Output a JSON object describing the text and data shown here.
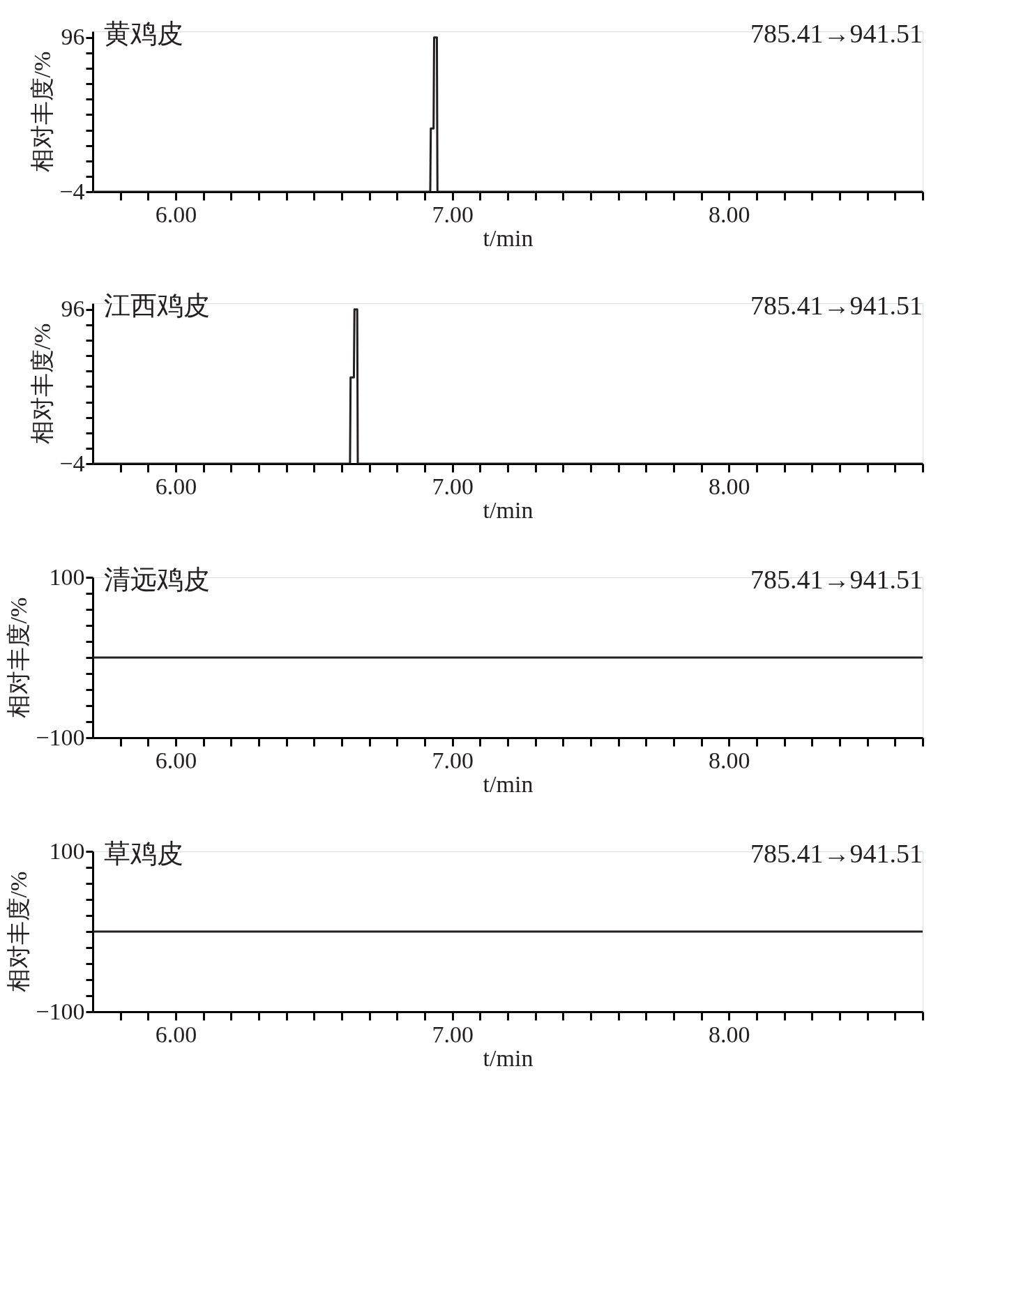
{
  "chart_data": [
    {
      "type": "line",
      "title": "黄鸡皮",
      "annotations": [
        "785.41→941.51"
      ],
      "xlabel": "t/min",
      "ylabel": "相对丰度/%",
      "xlim": [
        5.7,
        8.7
      ],
      "ylim": [
        -4,
        100
      ],
      "grid": false,
      "marker": "none",
      "line_style": "solid",
      "xticks": [
        {
          "value": 5.8,
          "label": null
        },
        {
          "value": 5.9,
          "label": null
        },
        {
          "value": 6.0,
          "label": "6.00"
        },
        {
          "value": 6.1,
          "label": null
        },
        {
          "value": 6.2,
          "label": null
        },
        {
          "value": 6.3,
          "label": null
        },
        {
          "value": 6.4,
          "label": null
        },
        {
          "value": 6.5,
          "label": null
        },
        {
          "value": 6.6,
          "label": null
        },
        {
          "value": 6.7,
          "label": null
        },
        {
          "value": 6.8,
          "label": null
        },
        {
          "value": 6.9,
          "label": null
        },
        {
          "value": 7.0,
          "label": "7.00"
        },
        {
          "value": 7.1,
          "label": null
        },
        {
          "value": 7.2,
          "label": null
        },
        {
          "value": 7.3,
          "label": null
        },
        {
          "value": 7.4,
          "label": null
        },
        {
          "value": 7.5,
          "label": null
        },
        {
          "value": 7.6,
          "label": null
        },
        {
          "value": 7.7,
          "label": null
        },
        {
          "value": 7.8,
          "label": null
        },
        {
          "value": 7.9,
          "label": null
        },
        {
          "value": 8.0,
          "label": "8.00"
        },
        {
          "value": 8.1,
          "label": null
        },
        {
          "value": 8.2,
          "label": null
        },
        {
          "value": 8.3,
          "label": null
        },
        {
          "value": 8.4,
          "label": null
        },
        {
          "value": 8.5,
          "label": null
        },
        {
          "value": 8.6,
          "label": null
        },
        {
          "value": 8.7,
          "label": null
        }
      ],
      "yticks": [
        {
          "value": -4,
          "label": "−4"
        },
        {
          "value": 6,
          "label": null
        },
        {
          "value": 16,
          "label": null
        },
        {
          "value": 26,
          "label": null
        },
        {
          "value": 36,
          "label": null
        },
        {
          "value": 46,
          "label": null
        },
        {
          "value": 56,
          "label": null
        },
        {
          "value": 66,
          "label": null
        },
        {
          "value": 76,
          "label": null
        },
        {
          "value": 86,
          "label": null
        },
        {
          "value": 96,
          "label": "96"
        }
      ],
      "series": [
        {
          "color": "#231f20",
          "x": [
            5.7,
            6.92,
            6.922,
            6.932,
            6.934,
            6.944,
            6.946,
            8.7
          ],
          "values": [
            -4,
            -4,
            37,
            37,
            96,
            96,
            -4,
            -4
          ]
        }
      ]
    },
    {
      "type": "line",
      "title": "江西鸡皮",
      "annotations": [
        "785.41→941.51"
      ],
      "xlabel": "t/min",
      "ylabel": "相对丰度/%",
      "xlim": [
        5.7,
        8.7
      ],
      "ylim": [
        -4,
        100
      ],
      "grid": false,
      "marker": "none",
      "line_style": "solid",
      "xticks": [
        {
          "value": 5.8,
          "label": null
        },
        {
          "value": 5.9,
          "label": null
        },
        {
          "value": 6.0,
          "label": "6.00"
        },
        {
          "value": 6.1,
          "label": null
        },
        {
          "value": 6.2,
          "label": null
        },
        {
          "value": 6.3,
          "label": null
        },
        {
          "value": 6.4,
          "label": null
        },
        {
          "value": 6.5,
          "label": null
        },
        {
          "value": 6.6,
          "label": null
        },
        {
          "value": 6.7,
          "label": null
        },
        {
          "value": 6.8,
          "label": null
        },
        {
          "value": 6.9,
          "label": null
        },
        {
          "value": 7.0,
          "label": "7.00"
        },
        {
          "value": 7.1,
          "label": null
        },
        {
          "value": 7.2,
          "label": null
        },
        {
          "value": 7.3,
          "label": null
        },
        {
          "value": 7.4,
          "label": null
        },
        {
          "value": 7.5,
          "label": null
        },
        {
          "value": 7.6,
          "label": null
        },
        {
          "value": 7.7,
          "label": null
        },
        {
          "value": 7.8,
          "label": null
        },
        {
          "value": 7.9,
          "label": null
        },
        {
          "value": 8.0,
          "label": "8.00"
        },
        {
          "value": 8.1,
          "label": null
        },
        {
          "value": 8.2,
          "label": null
        },
        {
          "value": 8.3,
          "label": null
        },
        {
          "value": 8.4,
          "label": null
        },
        {
          "value": 8.5,
          "label": null
        },
        {
          "value": 8.6,
          "label": null
        },
        {
          "value": 8.7,
          "label": null
        }
      ],
      "yticks": [
        {
          "value": -4,
          "label": "−4"
        },
        {
          "value": 6,
          "label": null
        },
        {
          "value": 16,
          "label": null
        },
        {
          "value": 26,
          "label": null
        },
        {
          "value": 36,
          "label": null
        },
        {
          "value": 46,
          "label": null
        },
        {
          "value": 56,
          "label": null
        },
        {
          "value": 66,
          "label": null
        },
        {
          "value": 76,
          "label": null
        },
        {
          "value": 86,
          "label": null
        },
        {
          "value": 96,
          "label": "96"
        }
      ],
      "series": [
        {
          "color": "#231f20",
          "x": [
            5.7,
            6.63,
            6.632,
            6.644,
            6.646,
            6.656,
            6.658,
            8.7
          ],
          "values": [
            -4,
            -4,
            52,
            52,
            96,
            96,
            -4,
            -4
          ]
        }
      ]
    },
    {
      "type": "line",
      "title": "清远鸡皮",
      "annotations": [
        "785.41→941.51"
      ],
      "xlabel": "t/min",
      "ylabel": "相对丰度/%",
      "xlim": [
        5.7,
        8.7
      ],
      "ylim": [
        -100,
        100
      ],
      "grid": false,
      "marker": "none",
      "line_style": "solid",
      "xticks": [
        {
          "value": 5.8,
          "label": null
        },
        {
          "value": 5.9,
          "label": null
        },
        {
          "value": 6.0,
          "label": "6.00"
        },
        {
          "value": 6.1,
          "label": null
        },
        {
          "value": 6.2,
          "label": null
        },
        {
          "value": 6.3,
          "label": null
        },
        {
          "value": 6.4,
          "label": null
        },
        {
          "value": 6.5,
          "label": null
        },
        {
          "value": 6.6,
          "label": null
        },
        {
          "value": 6.7,
          "label": null
        },
        {
          "value": 6.8,
          "label": null
        },
        {
          "value": 6.9,
          "label": null
        },
        {
          "value": 7.0,
          "label": "7.00"
        },
        {
          "value": 7.1,
          "label": null
        },
        {
          "value": 7.2,
          "label": null
        },
        {
          "value": 7.3,
          "label": null
        },
        {
          "value": 7.4,
          "label": null
        },
        {
          "value": 7.5,
          "label": null
        },
        {
          "value": 7.6,
          "label": null
        },
        {
          "value": 7.7,
          "label": null
        },
        {
          "value": 7.8,
          "label": null
        },
        {
          "value": 7.9,
          "label": null
        },
        {
          "value": 8.0,
          "label": "8.00"
        },
        {
          "value": 8.1,
          "label": null
        },
        {
          "value": 8.2,
          "label": null
        },
        {
          "value": 8.3,
          "label": null
        },
        {
          "value": 8.4,
          "label": null
        },
        {
          "value": 8.5,
          "label": null
        },
        {
          "value": 8.6,
          "label": null
        },
        {
          "value": 8.7,
          "label": null
        }
      ],
      "yticks": [
        {
          "value": -100,
          "label": "−100"
        },
        {
          "value": -80,
          "label": null
        },
        {
          "value": -60,
          "label": null
        },
        {
          "value": -40,
          "label": null
        },
        {
          "value": -20,
          "label": null
        },
        {
          "value": 0,
          "label": null
        },
        {
          "value": 20,
          "label": null
        },
        {
          "value": 40,
          "label": null
        },
        {
          "value": 60,
          "label": null
        },
        {
          "value": 80,
          "label": null
        },
        {
          "value": 100,
          "label": "100"
        }
      ],
      "series": [
        {
          "color": "#231f20",
          "x": [
            5.7,
            8.7
          ],
          "values": [
            0,
            0
          ]
        }
      ]
    },
    {
      "type": "line",
      "title": "草鸡皮",
      "annotations": [
        "785.41→941.51"
      ],
      "xlabel": "t/min",
      "ylabel": "相对丰度/%",
      "xlim": [
        5.7,
        8.7
      ],
      "ylim": [
        -100,
        100
      ],
      "grid": false,
      "marker": "none",
      "line_style": "solid",
      "xticks": [
        {
          "value": 5.8,
          "label": null
        },
        {
          "value": 5.9,
          "label": null
        },
        {
          "value": 6.0,
          "label": "6.00"
        },
        {
          "value": 6.1,
          "label": null
        },
        {
          "value": 6.2,
          "label": null
        },
        {
          "value": 6.3,
          "label": null
        },
        {
          "value": 6.4,
          "label": null
        },
        {
          "value": 6.5,
          "label": null
        },
        {
          "value": 6.6,
          "label": null
        },
        {
          "value": 6.7,
          "label": null
        },
        {
          "value": 6.8,
          "label": null
        },
        {
          "value": 6.9,
          "label": null
        },
        {
          "value": 7.0,
          "label": "7.00"
        },
        {
          "value": 7.1,
          "label": null
        },
        {
          "value": 7.2,
          "label": null
        },
        {
          "value": 7.3,
          "label": null
        },
        {
          "value": 7.4,
          "label": null
        },
        {
          "value": 7.5,
          "label": null
        },
        {
          "value": 7.6,
          "label": null
        },
        {
          "value": 7.7,
          "label": null
        },
        {
          "value": 7.8,
          "label": null
        },
        {
          "value": 7.9,
          "label": null
        },
        {
          "value": 8.0,
          "label": "8.00"
        },
        {
          "value": 8.1,
          "label": null
        },
        {
          "value": 8.2,
          "label": null
        },
        {
          "value": 8.3,
          "label": null
        },
        {
          "value": 8.4,
          "label": null
        },
        {
          "value": 8.5,
          "label": null
        },
        {
          "value": 8.6,
          "label": null
        },
        {
          "value": 8.7,
          "label": null
        }
      ],
      "yticks": [
        {
          "value": -100,
          "label": "−100"
        },
        {
          "value": -80,
          "label": null
        },
        {
          "value": -60,
          "label": null
        },
        {
          "value": -40,
          "label": null
        },
        {
          "value": -20,
          "label": null
        },
        {
          "value": 0,
          "label": null
        },
        {
          "value": 20,
          "label": null
        },
        {
          "value": 40,
          "label": null
        },
        {
          "value": 60,
          "label": null
        },
        {
          "value": 80,
          "label": null
        },
        {
          "value": 100,
          "label": "100"
        }
      ],
      "series": [
        {
          "color": "#231f20",
          "x": [
            5.7,
            8.7
          ],
          "values": [
            0,
            0
          ]
        }
      ]
    }
  ]
}
